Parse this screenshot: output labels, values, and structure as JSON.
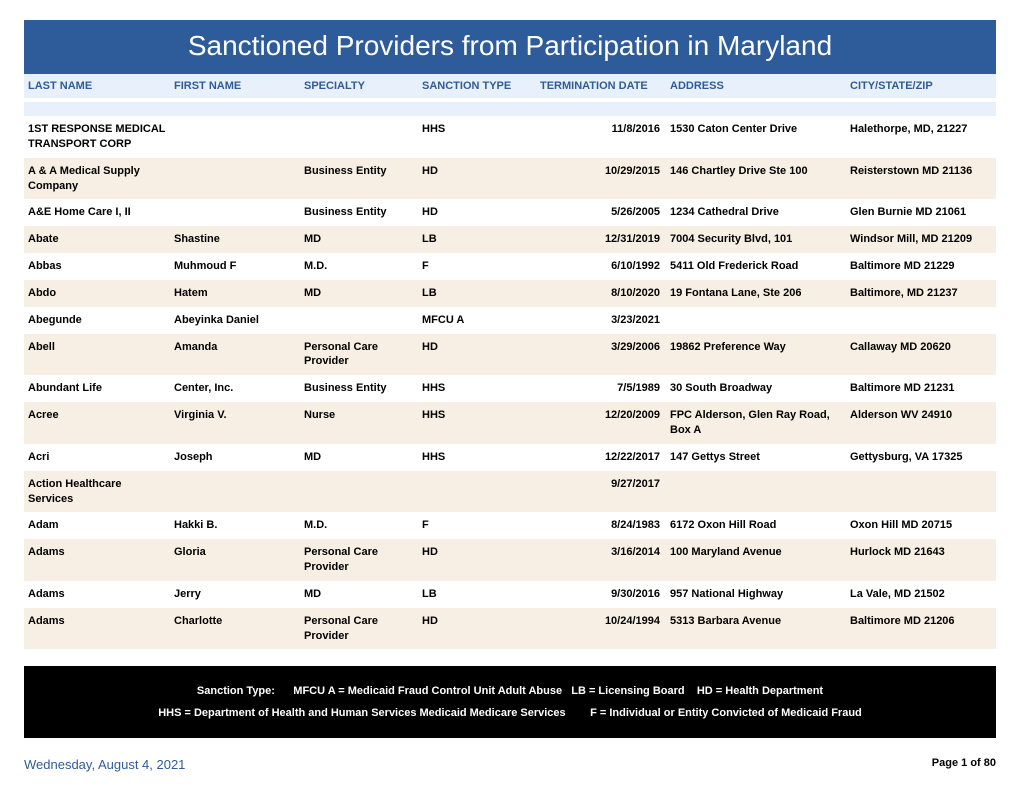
{
  "title": "Sanctioned Providers from Participation in Maryland",
  "colors": {
    "title_bg": "#2e5c9a",
    "title_text": "#ffffff",
    "header_bg": "#e8f0fb",
    "header_text": "#2e5c9a",
    "row_odd_bg": "#ffffff",
    "row_even_bg": "#f7efe4",
    "legend_bg": "#000000",
    "legend_text": "#ffffff",
    "footer_date_color": "#2e5c9a"
  },
  "columns": {
    "last": "LAST NAME",
    "first": "FIRST NAME",
    "spec": "SPECIALTY",
    "sanc": "SANCTION TYPE",
    "term": "TERMINATION DATE",
    "addr": "ADDRESS",
    "city": "CITY/STATE/ZIP"
  },
  "rows": [
    {
      "last": "1ST RESPONSE MEDICAL TRANSPORT CORP",
      "first": "",
      "spec": "",
      "sanc": "HHS",
      "term": "11/8/2016",
      "addr": "1530 Caton Center Drive",
      "city": "Halethorpe, MD, 21227"
    },
    {
      "last": "A & A Medical Supply Company",
      "first": "",
      "spec": "Business Entity",
      "sanc": "HD",
      "term": "10/29/2015",
      "addr": "146 Chartley Drive Ste 100",
      "city": "Reisterstown MD 21136"
    },
    {
      "last": "A&E Home Care I, II",
      "first": "",
      "spec": "Business Entity",
      "sanc": "HD",
      "term": "5/26/2005",
      "addr": "1234 Cathedral Drive",
      "city": "Glen Burnie MD 21061"
    },
    {
      "last": "Abate",
      "first": "Shastine",
      "spec": "MD",
      "sanc": "LB",
      "term": "12/31/2019",
      "addr": "7004 Security Blvd, 101",
      "city": "Windsor Mill, MD 21209"
    },
    {
      "last": "Abbas",
      "first": "Muhmoud F",
      "spec": "M.D.",
      "sanc": "F",
      "term": "6/10/1992",
      "addr": "5411 Old Frederick Road",
      "city": "Baltimore MD   21229"
    },
    {
      "last": "Abdo",
      "first": "Hatem",
      "spec": "MD",
      "sanc": "LB",
      "term": "8/10/2020",
      "addr": "19 Fontana Lane, Ste 206",
      "city": "Baltimore, MD 21237"
    },
    {
      "last": "Abegunde",
      "first": "Abeyinka Daniel",
      "spec": "",
      "sanc": "MFCU A",
      "term": "3/23/2021",
      "addr": "",
      "city": ""
    },
    {
      "last": "Abell",
      "first": "Amanda",
      "spec": "Personal Care Provider",
      "sanc": "HD",
      "term": "3/29/2006",
      "addr": "19862 Preference Way",
      "city": "Callaway MD   20620"
    },
    {
      "last": "Abundant Life",
      "first": "Center, Inc.",
      "spec": "Business Entity",
      "sanc": "HHS",
      "term": "7/5/1989",
      "addr": "30 South Broadway",
      "city": "Baltimore MD   21231"
    },
    {
      "last": "Acree",
      "first": "Virginia V.",
      "spec": "Nurse",
      "sanc": "HHS",
      "term": "12/20/2009",
      "addr": "FPC Alderson, Glen Ray Road, Box A",
      "city": "Alderson  WV  24910"
    },
    {
      "last": "Acri",
      "first": "Joseph",
      "spec": "MD",
      "sanc": "HHS",
      "term": "12/22/2017",
      "addr": "147 Gettys Street",
      "city": "Gettysburg, VA 17325"
    },
    {
      "last": "Action Healthcare Services",
      "first": "",
      "spec": "",
      "sanc": "",
      "term": "9/27/2017",
      "addr": "",
      "city": ""
    },
    {
      "last": "Adam",
      "first": "Hakki B.",
      "spec": "M.D.",
      "sanc": "F",
      "term": "8/24/1983",
      "addr": "6172 Oxon Hill Road",
      "city": "Oxon Hill MD   20715"
    },
    {
      "last": "Adams",
      "first": "Gloria",
      "spec": "Personal Care Provider",
      "sanc": "HD",
      "term": "3/16/2014",
      "addr": "100 Maryland Avenue",
      "city": "Hurlock MD  21643"
    },
    {
      "last": "Adams",
      "first": "Jerry",
      "spec": "MD",
      "sanc": "LB",
      "term": "9/30/2016",
      "addr": "957 National Highway",
      "city": "La Vale, MD 21502"
    },
    {
      "last": "Adams",
      "first": "Charlotte",
      "spec": "Personal Care Provider",
      "sanc": "HD",
      "term": "10/24/1994",
      "addr": "5313 Barbara Avenue",
      "city": "Baltimore MD   21206"
    }
  ],
  "legend": {
    "line1_label": "Sanction Type:",
    "line1_a": "MFCU A = Medicaid Fraud Control Unit Adult Abuse",
    "line1_b": "LB = Licensing Board",
    "line1_c": "HD = Health Department",
    "line2_a": "HHS = Department of Health and Human Services Medicaid Medicare Services",
    "line2_b": "F = Individual or Entity Convicted of Medicaid Fraud"
  },
  "footer": {
    "date": "Wednesday, August 4, 2021",
    "page": "Page 1 of 80"
  }
}
